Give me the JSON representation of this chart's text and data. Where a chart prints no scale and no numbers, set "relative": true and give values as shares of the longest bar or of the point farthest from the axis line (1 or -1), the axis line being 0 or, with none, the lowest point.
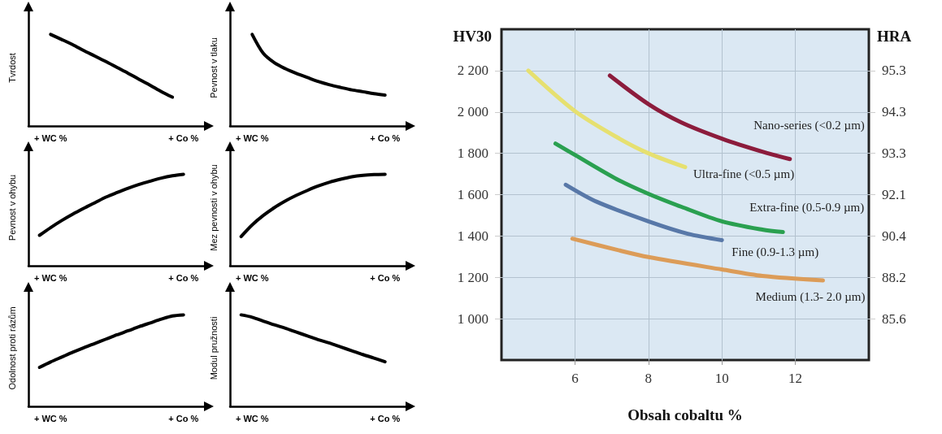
{
  "chart_data": [
    {
      "type": "line",
      "ylabel": "Tvrdost",
      "relative": true,
      "color": "#000000",
      "categories": [
        null,
        null,
        "+ WC %",
        null,
        null,
        null,
        null,
        null,
        null,
        null,
        null,
        null,
        null,
        null,
        "+ Co %",
        null,
        null
      ],
      "values": [
        null,
        null,
        1,
        0.945,
        0.888,
        0.824,
        0.764,
        0.703,
        0.639,
        0.576,
        0.509,
        0.445,
        0.376,
        0.315,
        null,
        null,
        null
      ]
    },
    {
      "type": "line",
      "ylabel": "Pevnost v tlaku",
      "relative": true,
      "color": "#000000",
      "categories": [
        null,
        null,
        "+ WC %",
        null,
        null,
        null,
        null,
        null,
        null,
        null,
        null,
        null,
        null,
        null,
        "+ Co %",
        null,
        null
      ],
      "values": [
        null,
        null,
        1,
        0.794,
        0.691,
        0.626,
        0.574,
        0.529,
        0.485,
        0.45,
        0.421,
        0.394,
        0.374,
        0.353,
        0.338,
        null,
        null
      ]
    },
    {
      "type": "line",
      "ylabel": "Pevnost v ohybu",
      "relative": true,
      "color": "#000000",
      "categories": [
        null,
        null,
        "+ WC %",
        null,
        null,
        null,
        null,
        null,
        null,
        null,
        null,
        null,
        null,
        null,
        "+ Co %",
        null,
        null
      ],
      "values": [
        null,
        0.333,
        0.417,
        0.494,
        0.564,
        0.628,
        0.689,
        0.75,
        0.8,
        0.847,
        0.889,
        0.925,
        0.958,
        0.983,
        1,
        null,
        null
      ]
    },
    {
      "type": "line",
      "ylabel": "Mez pevnosti v ohybu",
      "relative": true,
      "color": "#000000",
      "categories": [
        null,
        null,
        "+ WC %",
        null,
        null,
        null,
        null,
        null,
        null,
        null,
        null,
        null,
        null,
        null,
        "+ Co %",
        null,
        null
      ],
      "values": [
        null,
        0.319,
        0.446,
        0.549,
        0.635,
        0.708,
        0.77,
        0.824,
        0.873,
        0.914,
        0.946,
        0.973,
        0.989,
        0.997,
        1,
        null,
        null
      ]
    },
    {
      "type": "line",
      "ylabel": "Odolnost proti rázům",
      "relative": true,
      "color": "#000000",
      "categories": [
        null,
        null,
        "+ WC %",
        null,
        null,
        null,
        null,
        null,
        null,
        null,
        null,
        null,
        null,
        null,
        "+ Co %",
        null,
        null
      ],
      "values": [
        null,
        0.426,
        0.485,
        0.538,
        0.591,
        0.641,
        0.688,
        0.735,
        0.782,
        0.826,
        0.871,
        0.912,
        0.953,
        0.988,
        1,
        null,
        null
      ]
    },
    {
      "type": "line",
      "ylabel": "Modul pružnosti",
      "relative": true,
      "color": "#000000",
      "categories": [
        null,
        null,
        "+ WC %",
        null,
        null,
        null,
        null,
        null,
        null,
        null,
        null,
        null,
        null,
        null,
        "+ Co %",
        null,
        null
      ],
      "values": [
        null,
        1,
        0.974,
        0.932,
        0.891,
        0.853,
        0.811,
        0.77,
        0.728,
        0.691,
        0.649,
        0.608,
        0.566,
        0.528,
        0.487,
        null,
        null
      ]
    },
    {
      "type": "line",
      "xlabel": "Obsah cobaltu %",
      "ylabel": "HV30",
      "y2label": "HRA",
      "grid": true,
      "legend": false,
      "xlim": [
        4,
        14
      ],
      "xticks": [
        6,
        8,
        10,
        12
      ],
      "ylim": [
        800,
        2400
      ],
      "yticks": [
        {
          "value": 1000,
          "label": "1 000"
        },
        {
          "value": 1200,
          "label": "1 200"
        },
        {
          "value": 1400,
          "label": "1 400"
        },
        {
          "value": 1600,
          "label": "1 600"
        },
        {
          "value": 1800,
          "label": "1 800"
        },
        {
          "value": 2000,
          "label": "2 000"
        },
        {
          "value": 2200,
          "label": "2 200"
        }
      ],
      "y2_categories": [
        null,
        "95.3",
        "94.3",
        "93.3",
        "92.1",
        "90.4",
        "88.2",
        "85.6",
        null
      ],
      "series": [
        {
          "name": "Nano-series (<0.2 µm)",
          "color": "#8c1c3c",
          "x": [
            6.95,
            8,
            8.9,
            10,
            11.1,
            11.85
          ],
          "values": [
            2176,
            2038,
            1949,
            1871,
            1808,
            1772
          ]
        },
        {
          "name": "Ultra-fine (<0.5 µm)",
          "color": "#e6e070",
          "x": [
            4.73,
            6,
            7.14,
            8,
            9.0
          ],
          "values": [
            2200,
            2004,
            1878,
            1800,
            1733
          ]
        },
        {
          "name": "Extra-fine (0.5-0.9 µm)",
          "color": "#2aa050",
          "x": [
            5.47,
            6,
            7.14,
            8,
            8.9,
            10,
            11.1,
            11.66
          ],
          "values": [
            1847,
            1792,
            1675,
            1604,
            1541,
            1471,
            1431,
            1419
          ]
        },
        {
          "name": "Fine (0.9-1.3 µm)",
          "color": "#5878a8",
          "x": [
            5.75,
            6.6,
            8,
            9.07,
            10
          ],
          "values": [
            1648,
            1565,
            1471,
            1411,
            1380
          ]
        },
        {
          "name": "Medium (1.3- 2.0 µm)",
          "color": "#dc9c58",
          "x": [
            5.93,
            7.14,
            8,
            10,
            11.1,
            12.75
          ],
          "values": [
            1387,
            1333,
            1298,
            1238,
            1207,
            1185
          ]
        }
      ]
    }
  ]
}
